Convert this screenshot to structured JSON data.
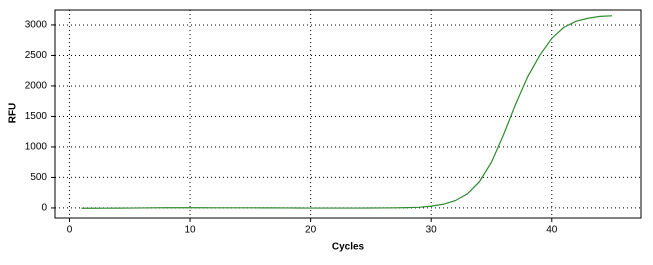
{
  "chart_data": {
    "type": "line",
    "xlabel": "Cycles",
    "ylabel": "RFU",
    "x": [
      1,
      2,
      3,
      4,
      5,
      6,
      7,
      8,
      9,
      10,
      11,
      12,
      13,
      14,
      15,
      16,
      17,
      18,
      19,
      20,
      21,
      22,
      23,
      24,
      25,
      26,
      27,
      28,
      29,
      30,
      31,
      32,
      33,
      34,
      35,
      36,
      37,
      38,
      39,
      40,
      41,
      42,
      43,
      44,
      45
    ],
    "series": [
      {
        "color": "#2e8b2e",
        "values": [
          -5,
          -5,
          -4,
          -3,
          -2,
          0,
          2,
          3,
          3,
          3,
          3,
          2,
          2,
          2,
          2,
          1,
          1,
          0,
          -1,
          -2,
          -2,
          -2,
          -2,
          -2,
          -1,
          0,
          2,
          5,
          10,
          30,
          60,
          120,
          230,
          430,
          750,
          1200,
          1700,
          2150,
          2500,
          2780,
          2960,
          3060,
          3110,
          3140,
          3150
        ]
      }
    ],
    "xlim": [
      -1.2,
      47.4
    ],
    "ylim": [
      -165,
      3245
    ],
    "xticks": [
      0,
      10,
      20,
      30,
      40
    ],
    "yticks": [
      0,
      500,
      1000,
      1500,
      2000,
      2500,
      3000
    ],
    "grid": true
  }
}
